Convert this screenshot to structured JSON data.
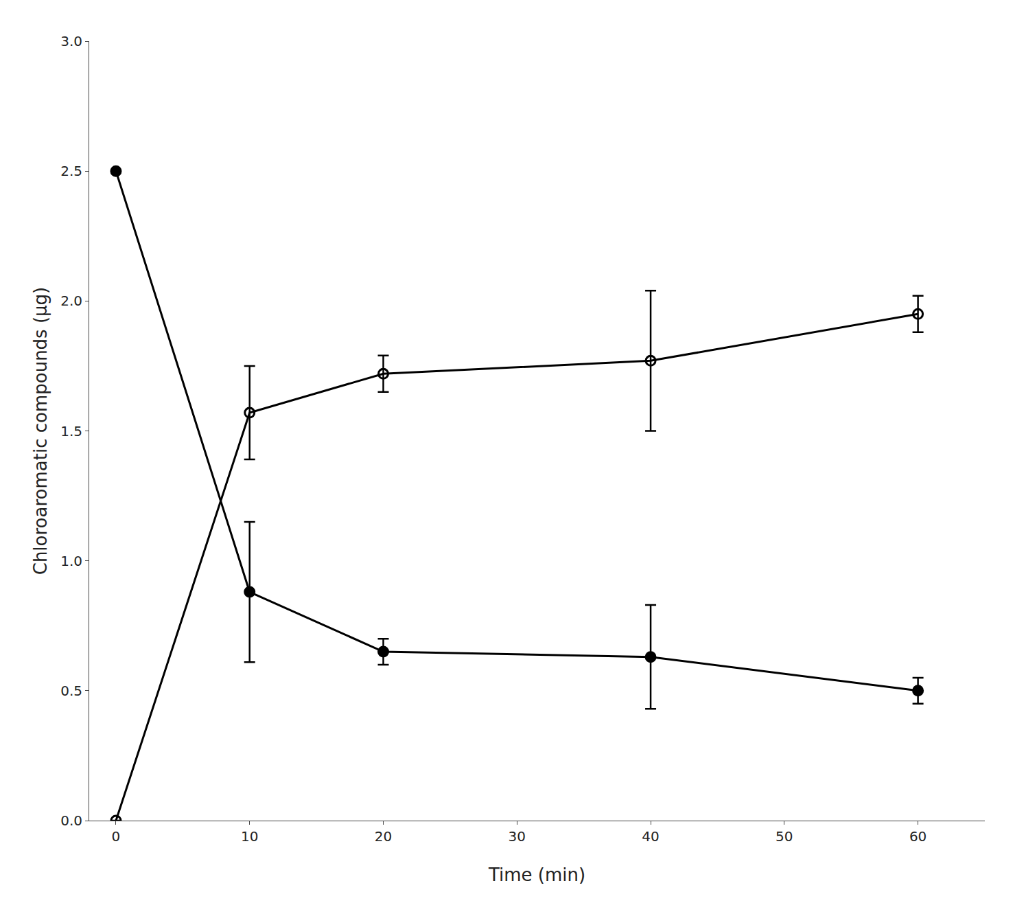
{
  "chart_data": {
    "type": "line",
    "x_label": "Time (min)",
    "y_label": "Chloroaromatic compounds (µg)",
    "x": [
      0,
      10,
      20,
      40,
      60
    ],
    "series": [
      {
        "color": "#000000",
        "marker": "circle",
        "values": [
          2.5,
          0.88,
          0.65,
          0.63,
          0.5
        ],
        "yerr": [
          0.0,
          0.27,
          0.05,
          0.2,
          0.05
        ]
      },
      {
        "color": "#000000",
        "marker": "circle-open",
        "values": [
          0.0,
          1.57,
          1.72,
          1.77,
          1.95
        ],
        "yerr": [
          0.0,
          0.18,
          0.07,
          0.27,
          0.07
        ]
      }
    ],
    "xlim": [
      -2,
      65
    ],
    "ylim": [
      0.0,
      3.0
    ],
    "xticks": [
      0,
      10,
      20,
      30,
      40,
      50,
      60
    ],
    "yticks": [
      {
        "value": 0,
        "label": "0.0"
      },
      0.5,
      {
        "value": 1,
        "label": "1.0"
      },
      1.5,
      {
        "value": 2,
        "label": "2.0"
      },
      2.5,
      {
        "value": 3,
        "label": "3.0"
      }
    ],
    "grid": false
  }
}
